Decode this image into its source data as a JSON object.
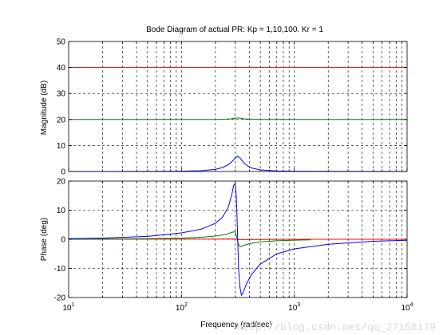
{
  "chart_data": {
    "type": "line",
    "title": "Bode Diagram of actual PR: Kp = 1,10,100. Kr = 1",
    "xlabel": "Frequency  (rad/sec)",
    "x_scale": "log",
    "xlim": [
      10,
      10000
    ],
    "x_ticks": [
      10,
      100,
      1000,
      10000
    ],
    "x_tick_labels": [
      {
        "base": "10",
        "exp": "1"
      },
      {
        "base": "10",
        "exp": "2"
      },
      {
        "base": "10",
        "exp": "3"
      },
      {
        "base": "10",
        "exp": "4"
      }
    ],
    "grid": true,
    "colors": {
      "kp1": "#0000ff",
      "kp10": "#008000",
      "kp100": "#ff0000"
    },
    "panels": [
      {
        "name": "magnitude",
        "ylabel": "Magnitude (dB)",
        "ylim": [
          0,
          50
        ],
        "y_ticks": [
          0,
          10,
          20,
          30,
          40,
          50
        ],
        "y_tick_labels": [
          "0",
          "10",
          "20",
          "30",
          "40",
          "50"
        ],
        "series": [
          {
            "color": "#ff0000",
            "x": [
              10,
              100,
              250,
              300,
              314,
              330,
              400,
              1000,
              10000
            ],
            "y": [
              40,
              40,
              40.01,
              40.03,
              40.05,
              40.03,
              40.01,
              40,
              40
            ]
          },
          {
            "color": "#008000",
            "x": [
              10,
              100,
              200,
              250,
              280,
              300,
              314,
              330,
              350,
              400,
              500,
              1000,
              10000
            ],
            "y": [
              20,
              20,
              20.02,
              20.1,
              20.3,
              20.5,
              20.6,
              20.5,
              20.3,
              20.08,
              20.02,
              20,
              20
            ]
          },
          {
            "color": "#0000ff",
            "x": [
              10,
              50,
              100,
              150,
              200,
              230,
              260,
              280,
              300,
              314,
              330,
              350,
              380,
              420,
              500,
              700,
              1000,
              10000
            ],
            "y": [
              0,
              0.02,
              0.1,
              0.3,
              0.8,
              1.5,
              2.6,
              3.8,
              5.2,
              5.9,
              5.2,
              3.8,
              2.3,
              1.3,
              0.6,
              0.2,
              0.08,
              0
            ]
          }
        ]
      },
      {
        "name": "phase",
        "ylabel": "Phase (deg)",
        "ylim": [
          -20,
          20
        ],
        "y_ticks": [
          -20,
          -10,
          0,
          10,
          20
        ],
        "y_tick_labels": [
          "-20",
          "-10",
          "0",
          "10",
          "20"
        ],
        "series": [
          {
            "color": "#ff0000",
            "x": [
              10,
              300,
              310,
              320,
              1000,
              10000
            ],
            "y": [
              0,
              0.1,
              0,
              -0.1,
              0,
              0
            ]
          },
          {
            "color": "#008000",
            "x": [
              10,
              50,
              100,
              150,
              200,
              250,
              280,
              300,
              310,
              320,
              330,
              350,
              400,
              500,
              700,
              1000,
              1400
            ],
            "y": [
              0.05,
              0.2,
              0.4,
              0.7,
              1.1,
              1.7,
              2.4,
              2.6,
              0.5,
              -1.7,
              -2.6,
              -2.2,
              -1.5,
              -0.9,
              -0.5,
              -0.3,
              -0.2
            ]
          },
          {
            "color": "#0000ff",
            "x": [
              10,
              20,
              50,
              100,
              150,
              200,
              230,
              260,
              280,
              290,
              300,
              306,
              310,
              314,
              318,
              322,
              330,
              340,
              350,
              380,
              420,
              500,
              700,
              1000,
              2000,
              5000,
              10000
            ],
            "y": [
              0.2,
              0.4,
              1.0,
              2.2,
              3.5,
              5.5,
              7.5,
              11,
              15.5,
              18.5,
              19.2,
              15,
              9,
              2,
              -5,
              -11,
              -16.5,
              -19.2,
              -18.5,
              -15,
              -12,
              -8.5,
              -5,
              -3.3,
              -1.7,
              -0.7,
              -0.35
            ]
          }
        ]
      }
    ],
    "watermark": "http://blog.csdn.net/qq_27158179"
  }
}
